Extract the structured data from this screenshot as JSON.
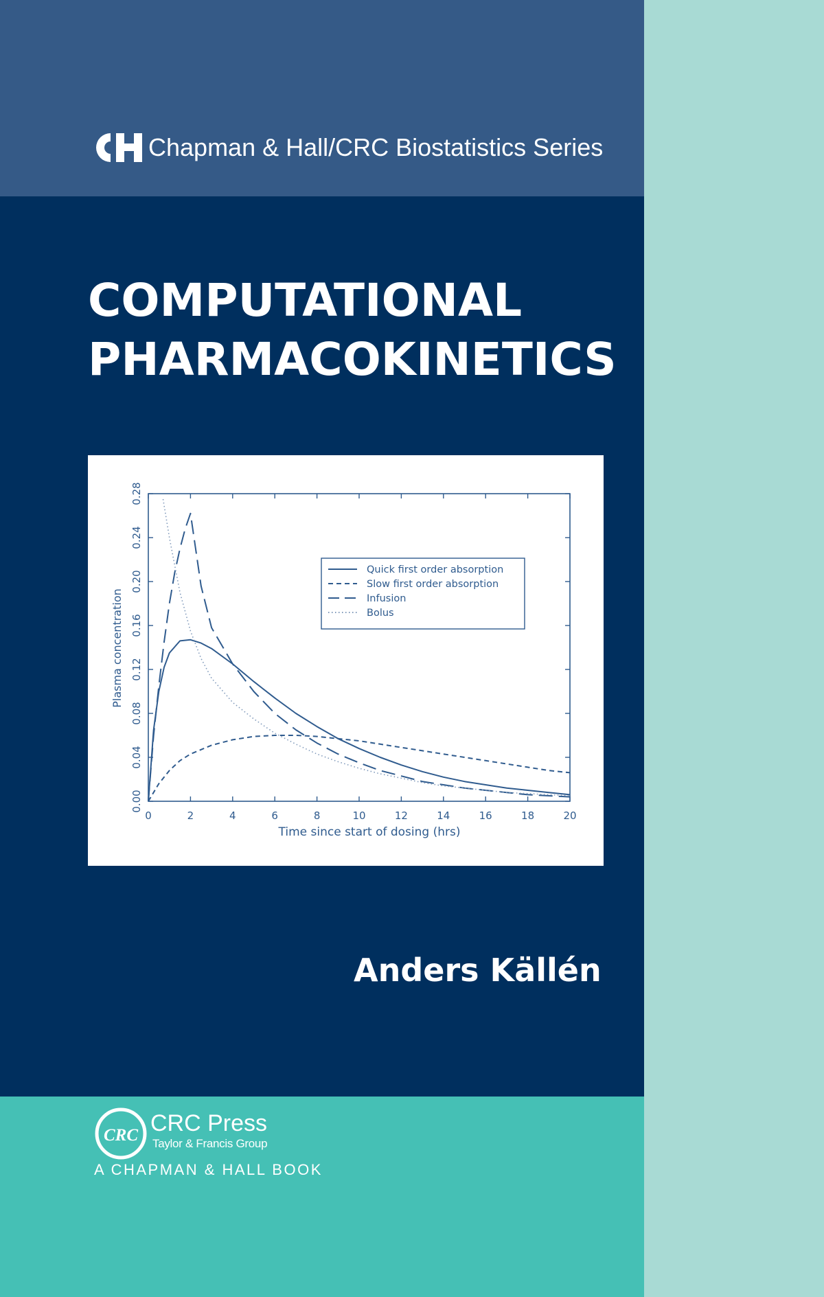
{
  "series": {
    "name": "Chapman & Hall/CRC Biostatistics Series",
    "logo_icon": "ch-logo-icon"
  },
  "book": {
    "title_line1": "COMPUTATIONAL",
    "title_line2": "PHARMACOKINETICS",
    "author": "Anders Källén"
  },
  "publisher": {
    "name": "CRC Press",
    "group": "Taylor & Francis Group",
    "imprint": "A CHAPMAN & HALL BOOK",
    "logo_icon": "crc-logo-icon",
    "logo_text": "CRC"
  },
  "colors": {
    "series_band": "#355a87",
    "main_band": "#002f5e",
    "bottom_band": "#45c0b5",
    "spine": "#a8dad4",
    "chart_line": "#2f5b8e"
  },
  "chart_data": {
    "type": "line",
    "xlabel": "Time since start of dosing (hrs)",
    "ylabel": "Plasma concentration",
    "xlim": [
      0,
      20
    ],
    "ylim": [
      0,
      0.28
    ],
    "x_ticks": [
      "0",
      "2",
      "4",
      "6",
      "8",
      "10",
      "12",
      "14",
      "16",
      "18",
      "20"
    ],
    "y_ticks": [
      "0.00",
      "0.04",
      "0.08",
      "0.12",
      "0.16",
      "0.20",
      "0.24",
      "0.28"
    ],
    "legend_position": "top-right",
    "grid": false,
    "series": [
      {
        "name": "Quick first order absorption",
        "style": "solid",
        "x": [
          0,
          0.25,
          0.5,
          0.75,
          1,
          1.5,
          2,
          2.5,
          3,
          4,
          5,
          6,
          7,
          8,
          9,
          10,
          11,
          12,
          13,
          14,
          15,
          16,
          17,
          18,
          19,
          20
        ],
        "y": [
          0,
          0.065,
          0.1,
          0.122,
          0.135,
          0.146,
          0.147,
          0.144,
          0.139,
          0.125,
          0.109,
          0.094,
          0.08,
          0.068,
          0.057,
          0.048,
          0.04,
          0.033,
          0.027,
          0.022,
          0.018,
          0.015,
          0.012,
          0.01,
          0.008,
          0.006
        ]
      },
      {
        "name": "Slow first order absorption",
        "style": "dashed",
        "x": [
          0,
          0.5,
          1,
          1.5,
          2,
          3,
          4,
          5,
          6,
          7,
          8,
          9,
          10,
          11,
          12,
          13,
          14,
          15,
          16,
          17,
          18,
          19,
          20
        ],
        "y": [
          0,
          0.016,
          0.028,
          0.037,
          0.043,
          0.051,
          0.056,
          0.059,
          0.06,
          0.06,
          0.059,
          0.057,
          0.055,
          0.052,
          0.049,
          0.046,
          0.043,
          0.04,
          0.037,
          0.034,
          0.031,
          0.028,
          0.026
        ]
      },
      {
        "name": "Infusion",
        "style": "longdash",
        "x": [
          0,
          0.25,
          0.5,
          0.75,
          1,
          1.25,
          1.5,
          1.75,
          2,
          2.5,
          3,
          4,
          5,
          6,
          7,
          8,
          9,
          10,
          11,
          12,
          13,
          14,
          15,
          16,
          17,
          18,
          19,
          20
        ],
        "y": [
          0,
          0.06,
          0.105,
          0.145,
          0.18,
          0.208,
          0.23,
          0.248,
          0.262,
          0.196,
          0.158,
          0.125,
          0.1,
          0.08,
          0.065,
          0.053,
          0.043,
          0.035,
          0.028,
          0.023,
          0.018,
          0.015,
          0.012,
          0.01,
          0.008,
          0.006,
          0.005,
          0.004
        ]
      },
      {
        "name": "Bolus",
        "style": "dotted",
        "x": [
          0.7,
          1,
          1.5,
          2,
          2.5,
          3,
          4,
          5,
          6,
          7,
          8,
          9,
          10,
          11,
          12,
          13,
          14,
          15,
          16,
          17,
          18,
          19,
          20
        ],
        "y": [
          0.275,
          0.24,
          0.19,
          0.155,
          0.13,
          0.112,
          0.09,
          0.075,
          0.062,
          0.052,
          0.043,
          0.036,
          0.03,
          0.025,
          0.021,
          0.017,
          0.014,
          0.012,
          0.01,
          0.008,
          0.007,
          0.006,
          0.005
        ]
      }
    ]
  }
}
